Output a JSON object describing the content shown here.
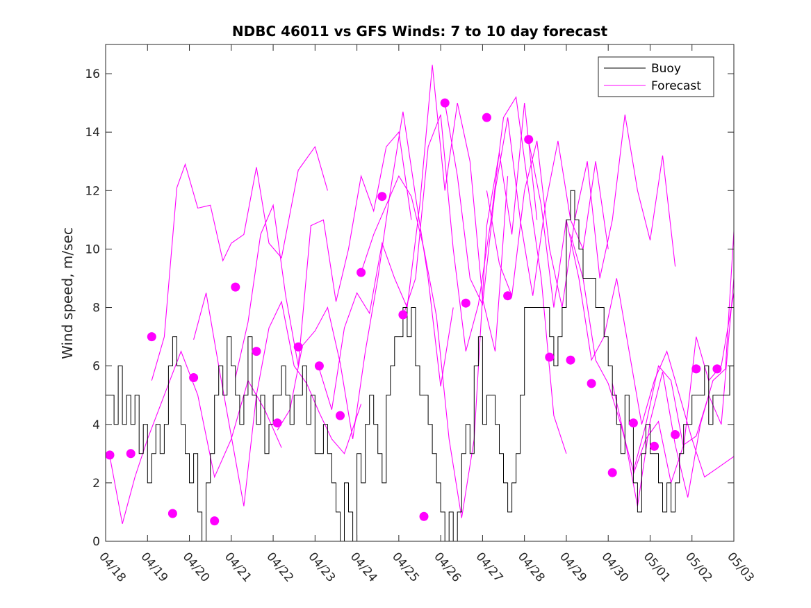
{
  "chart_data": {
    "type": "line",
    "title": "NDBC 46011 vs GFS Winds: 7 to 10 day forecast",
    "xlabel": "",
    "ylabel": "Wind speed, m/sec",
    "xlim": [
      0,
      15
    ],
    "ylim": [
      0,
      17
    ],
    "yticks": [
      0,
      2,
      4,
      6,
      8,
      10,
      12,
      14,
      16
    ],
    "xticks": [
      0,
      1,
      2,
      3,
      4,
      5,
      6,
      7,
      8,
      9,
      10,
      11,
      12,
      13,
      14,
      15
    ],
    "xtick_labels": [
      "04/18",
      "04/19",
      "04/20",
      "04/21",
      "04/22",
      "04/23",
      "04/24",
      "04/25",
      "04/26",
      "04/27",
      "04/28",
      "04/29",
      "04/30",
      "05/01",
      "05/02",
      "05/03"
    ],
    "x_units": "days since 04/18",
    "grid": false,
    "legend": {
      "position": "top-right",
      "entries": [
        "Buoy",
        "Forecast"
      ]
    },
    "colors": {
      "buoy": "#000000",
      "forecast": "#ff00ff"
    },
    "buoy": {
      "name": "Buoy",
      "x": [
        0.0,
        0.1,
        0.2,
        0.3,
        0.4,
        0.5,
        0.6,
        0.7,
        0.8,
        0.9,
        1.0,
        1.1,
        1.2,
        1.3,
        1.4,
        1.5,
        1.6,
        1.7,
        1.8,
        1.9,
        2.0,
        2.1,
        2.2,
        2.3,
        2.4,
        2.5,
        2.6,
        2.7,
        2.8,
        2.9,
        3.0,
        3.1,
        3.2,
        3.3,
        3.4,
        3.5,
        3.6,
        3.7,
        3.8,
        3.9,
        4.0,
        4.1,
        4.2,
        4.3,
        4.4,
        4.5,
        4.6,
        4.7,
        4.8,
        4.9,
        5.0,
        5.1,
        5.2,
        5.3,
        5.4,
        5.5,
        5.6,
        5.7,
        5.8,
        5.9,
        6.0,
        6.1,
        6.2,
        6.3,
        6.4,
        6.5,
        6.6,
        6.7,
        6.8,
        6.9,
        7.0,
        7.1,
        7.2,
        7.3,
        7.4,
        7.5,
        7.6,
        7.7,
        7.8,
        7.9,
        8.0,
        8.1,
        8.2,
        8.3,
        8.4,
        8.5,
        8.6,
        8.7,
        8.8,
        8.9,
        9.0,
        9.1,
        9.2,
        9.3,
        9.4,
        9.5,
        9.6,
        9.7,
        9.8,
        9.9,
        10.0,
        10.1,
        10.2,
        10.3,
        10.4,
        10.5,
        10.6,
        10.7,
        10.8,
        10.9,
        11.0,
        11.1,
        11.2,
        11.3,
        11.4,
        11.5,
        11.6,
        11.7,
        11.8,
        11.9,
        12.0,
        12.1,
        12.2,
        12.3,
        12.4,
        12.5,
        12.6,
        12.7,
        12.8,
        12.9,
        13.0,
        13.1,
        13.2,
        13.3,
        13.4,
        13.5,
        13.6,
        13.7,
        13.8,
        13.9,
        14.0,
        14.1,
        14.2,
        14.3,
        14.4,
        14.5,
        14.6,
        14.7,
        14.8,
        14.9,
        15.0
      ],
      "y": [
        5,
        5,
        4,
        6,
        4,
        5,
        4,
        5,
        3,
        4,
        2,
        3,
        4,
        3,
        4,
        6,
        7,
        6,
        4,
        3,
        2,
        3,
        1,
        0,
        2,
        3,
        5,
        6,
        5,
        7,
        6,
        5,
        4,
        5,
        7,
        5,
        4,
        5,
        3,
        4,
        5,
        5,
        6,
        5,
        4,
        5,
        5,
        6,
        4,
        5,
        3,
        3,
        4,
        3,
        2,
        1,
        0,
        2,
        1,
        0,
        3,
        2,
        4,
        5,
        4,
        3,
        2,
        5,
        6,
        7,
        7,
        8,
        7,
        8,
        6,
        5,
        5,
        4,
        3,
        2,
        1,
        0,
        1,
        0,
        1,
        3,
        4,
        3,
        6,
        7,
        4,
        5,
        5,
        4,
        3,
        2,
        1,
        2,
        3,
        5,
        8,
        8,
        8,
        8,
        8,
        8,
        7,
        6,
        7,
        8,
        11,
        12,
        11,
        10,
        9,
        9,
        9,
        8,
        8,
        7,
        6,
        5,
        4,
        3,
        5,
        4,
        2,
        1,
        3,
        4,
        3,
        3,
        2,
        1,
        2,
        1,
        2,
        3,
        4,
        4,
        5,
        5,
        5,
        6,
        4,
        5,
        5,
        5,
        5,
        6,
        6
      ]
    },
    "forecast_series": [
      {
        "x": [
          0.1,
          0.4,
          0.7,
          1.0,
          1.4,
          1.8,
          2.2,
          2.6,
          3.0,
          3.4,
          3.8,
          4.2
        ],
        "y": [
          2.9,
          0.6,
          2.2,
          3.5,
          5.0,
          6.5,
          5.0,
          2.2,
          3.5,
          5.5,
          4.5,
          3.2
        ]
      },
      {
        "x": [
          1.1,
          1.4,
          1.7,
          1.9,
          2.2,
          2.5,
          2.8,
          3.0,
          3.3,
          3.6,
          3.9,
          4.2,
          4.6,
          5.0,
          5.3
        ],
        "y": [
          5.5,
          7.0,
          12.1,
          12.9,
          11.4,
          11.5,
          9.6,
          10.2,
          10.5,
          12.8,
          10.2,
          9.7,
          12.7,
          13.5,
          12.0
        ]
      },
      {
        "x": [
          2.1,
          2.4,
          2.7,
          3.0,
          3.3,
          3.6,
          3.9,
          4.2,
          4.5,
          4.8,
          5.1,
          5.4,
          5.7,
          6.1
        ],
        "y": [
          6.9,
          8.5,
          6.0,
          3.6,
          1.2,
          5.0,
          7.3,
          8.2,
          6.0,
          5.4,
          4.4,
          3.5,
          3.0,
          4.7
        ]
      },
      {
        "x": [
          3.1,
          3.4,
          3.7,
          4.0,
          4.3,
          4.6,
          4.9,
          5.2,
          5.5,
          5.8,
          6.1,
          6.4,
          6.7,
          7.0,
          7.3
        ],
        "y": [
          5.6,
          7.5,
          10.5,
          11.5,
          8.4,
          6.0,
          10.8,
          11.0,
          8.2,
          10.0,
          12.5,
          11.3,
          13.5,
          14.0,
          11.0
        ]
      },
      {
        "x": [
          4.1,
          4.4,
          4.7,
          5.0,
          5.3,
          5.6,
          5.9,
          6.2,
          6.5,
          6.8,
          7.1,
          7.4,
          7.7,
          8.0,
          8.3
        ],
        "y": [
          3.8,
          4.5,
          6.7,
          7.2,
          8.0,
          6.1,
          3.5,
          6.5,
          9.0,
          12.0,
          14.7,
          11.8,
          9.0,
          5.3,
          8.0
        ]
      },
      {
        "x": [
          5.1,
          5.4,
          5.7,
          6.0,
          6.3,
          6.6,
          6.9,
          7.2,
          7.5,
          7.8,
          8.1,
          8.4,
          8.7,
          9.0,
          9.3,
          9.6
        ],
        "y": [
          5.9,
          4.5,
          7.3,
          8.5,
          7.8,
          10.2,
          9.0,
          8.0,
          11.5,
          16.3,
          12.0,
          15.0,
          13.0,
          8.3,
          6.5,
          12.5
        ]
      },
      {
        "x": [
          6.1,
          6.4,
          6.7,
          7.0,
          7.3,
          7.6,
          7.9,
          8.2,
          8.5,
          8.8,
          9.1,
          9.4,
          9.7,
          10.0,
          10.3
        ],
        "y": [
          9.2,
          10.5,
          11.5,
          12.5,
          11.8,
          10.0,
          7.7,
          3.5,
          0.8,
          3.5,
          10.8,
          13.3,
          10.5,
          15.0,
          11.0
        ]
      },
      {
        "x": [
          7.1,
          7.4,
          7.7,
          8.0,
          8.3,
          8.6,
          8.9,
          9.2,
          9.5,
          9.8,
          10.1,
          10.4,
          10.7,
          11.0
        ],
        "y": [
          7.7,
          9.0,
          13.5,
          14.6,
          10.0,
          6.5,
          8.1,
          11.0,
          14.5,
          15.2,
          12.0,
          9.0,
          4.3,
          3.0
        ]
      },
      {
        "x": [
          8.1,
          8.4,
          8.7,
          9.0,
          9.3,
          9.6,
          9.9,
          10.2,
          10.5,
          10.8,
          11.1,
          11.4,
          11.7,
          12.0
        ],
        "y": [
          15.0,
          12.5,
          9.0,
          8.1,
          12.0,
          14.5,
          11.0,
          8.4,
          11.5,
          13.7,
          11.0,
          10.0,
          13.0,
          10.0
        ]
      },
      {
        "x": [
          9.1,
          9.4,
          9.7,
          10.0,
          10.3,
          10.6,
          10.9,
          11.2,
          11.5,
          11.8,
          12.1,
          12.4,
          12.7,
          13.0,
          13.3,
          13.6
        ],
        "y": [
          12.0,
          9.5,
          8.4,
          12.0,
          13.7,
          10.0,
          8.0,
          11.0,
          13.0,
          9.0,
          11.0,
          14.6,
          12.0,
          10.3,
          13.2,
          9.4
        ]
      },
      {
        "x": [
          10.1,
          10.4,
          10.7,
          11.0,
          11.3,
          11.6,
          11.9,
          12.2,
          12.5,
          12.8,
          13.1,
          13.4,
          13.7,
          14.0,
          14.3,
          14.6,
          15.0
        ],
        "y": [
          13.7,
          11.5,
          8.0,
          11.0,
          9.0,
          6.2,
          7.0,
          9.0,
          6.5,
          4.0,
          5.5,
          6.5,
          5.0,
          3.5,
          2.2,
          2.5,
          2.9
        ]
      },
      {
        "x": [
          11.1,
          11.4,
          11.7,
          12.0,
          12.3,
          12.6,
          12.9,
          13.2,
          13.5,
          13.8,
          14.1,
          14.4,
          14.7,
          15.0
        ],
        "y": [
          10.5,
          9.0,
          6.2,
          5.4,
          4.0,
          2.4,
          4.0,
          6.0,
          5.5,
          3.2,
          7.0,
          5.5,
          6.0,
          8.5
        ]
      },
      {
        "x": [
          12.1,
          12.4,
          12.7,
          13.0,
          13.3,
          13.6,
          13.9,
          14.2,
          14.5,
          14.8,
          15.0
        ],
        "y": [
          5.4,
          3.5,
          1.2,
          4.1,
          5.8,
          3.3,
          1.5,
          4.0,
          5.5,
          5.9,
          10.6
        ]
      },
      {
        "x": [
          12.6,
          12.9,
          13.2,
          13.5,
          13.8,
          14.1,
          14.4,
          14.7,
          15.0
        ],
        "y": [
          2.3,
          3.5,
          4.1,
          2.0,
          3.3,
          3.6,
          5.0,
          4.0,
          9.0
        ]
      }
    ],
    "forecast_markers": {
      "x": [
        0.1,
        0.6,
        1.1,
        1.6,
        2.1,
        2.6,
        3.1,
        3.6,
        4.1,
        4.6,
        5.1,
        5.6,
        6.1,
        6.6,
        7.1,
        7.6,
        8.1,
        8.6,
        9.1,
        9.6,
        10.1,
        10.6,
        11.1,
        11.6,
        12.1,
        12.6,
        13.1,
        13.6,
        14.1,
        14.6
      ],
      "y": [
        2.95,
        3.0,
        7.0,
        0.95,
        5.6,
        0.7,
        8.7,
        6.5,
        4.05,
        6.65,
        6.0,
        4.3,
        9.2,
        11.8,
        7.75,
        0.85,
        15.0,
        8.15,
        14.5,
        8.4,
        13.75,
        6.3,
        6.2,
        5.4,
        2.35,
        4.05,
        3.25,
        3.65,
        5.9,
        5.9
      ]
    }
  }
}
